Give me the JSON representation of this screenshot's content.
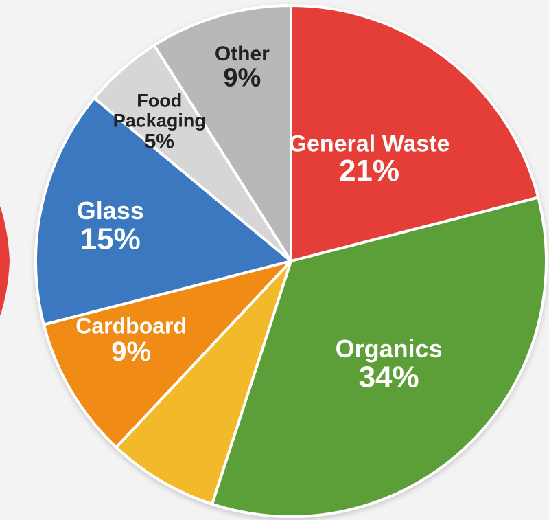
{
  "chart_data": {
    "type": "pie",
    "slices": [
      {
        "label": "General Waste",
        "value": 21,
        "value_label": "21%",
        "color": "#e53c37",
        "label_color": "#ffffff"
      },
      {
        "label": "Organics",
        "value": 34,
        "value_label": "34%",
        "color": "#5b9f38",
        "label_color": "#ffffff"
      },
      {
        "label": "",
        "value": 7,
        "value_label": "",
        "color": "#f2b92a",
        "label_color": "#ffffff"
      },
      {
        "label": "Cardboard",
        "value": 9,
        "value_label": "9%",
        "color": "#f08c13",
        "label_color": "#ffffff"
      },
      {
        "label": "Glass",
        "value": 15,
        "value_label": "15%",
        "color": "#3a78c0",
        "label_color": "#ffffff"
      },
      {
        "label": "Food\nPackaging",
        "value": 5,
        "value_label": "5%",
        "color": "#d6d6d6",
        "label_color": "#222222"
      },
      {
        "label": "Other",
        "value": 9,
        "value_label": "9%",
        "color": "#b8b8b8",
        "label_color": "#222222"
      }
    ],
    "legend": "none",
    "start_angle": "12 o'clock, clockwise"
  }
}
